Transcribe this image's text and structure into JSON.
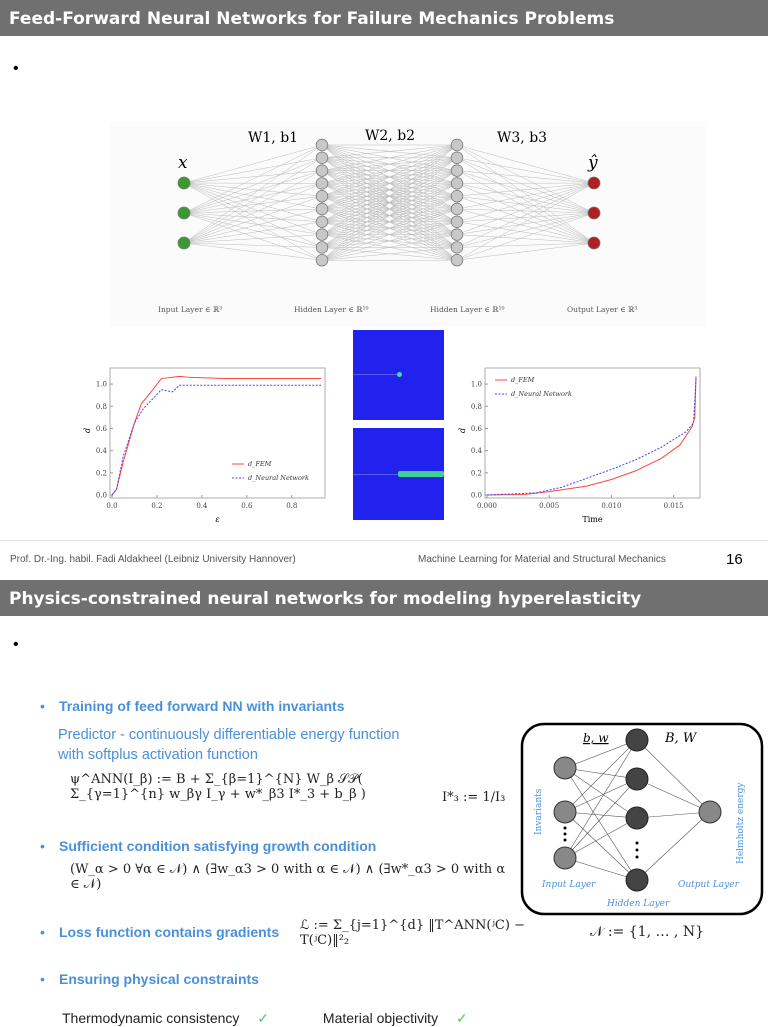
{
  "slide1": {
    "title": "Feed-Forward Neural Networks for Failure Mechanics Problems",
    "bullet": "•",
    "nn": {
      "weights": [
        "W1, b1",
        "W2, b2",
        "W3, b3"
      ],
      "input_symbol": "x",
      "output_symbol": "ŷ",
      "layer_labels": [
        "Input Layer ∈ ℝ³",
        "Hidden Layer ∈ ℝ¹⁰",
        "Hidden Layer ∈ ℝ¹⁰",
        "Output Layer ∈ ℝ³"
      ],
      "layer_sizes": [
        3,
        10,
        10,
        3
      ],
      "colors": {
        "input": "#3a9a30",
        "hidden": "#c8c8c8",
        "output": "#b02020"
      }
    },
    "footer": {
      "left": "Prof. Dr.-Ing. habil. Fadi Aldakheel (Leibniz University Hannover)",
      "center": "Machine Learning for Material and Structural Mechanics",
      "page": "16"
    }
  },
  "chart_data": [
    {
      "type": "line",
      "xlabel": "ε",
      "ylabel": "d",
      "xlim": [
        0,
        0.93
      ],
      "ylim": [
        0,
        1.1
      ],
      "xticks": [
        "0.0",
        "0.2",
        "0.4",
        "0.6",
        "0.8"
      ],
      "yticks": [
        "0.0",
        "0.2",
        "0.4",
        "0.6",
        "0.8",
        "1.0"
      ],
      "legend": "bottom-right",
      "series": [
        {
          "name": "d_FEM",
          "color": "#ff4444",
          "dash": false,
          "x": [
            0,
            0.02,
            0.05,
            0.1,
            0.13,
            0.17,
            0.22,
            0.3,
            0.35,
            0.5,
            0.93
          ],
          "y": [
            0,
            0.05,
            0.3,
            0.65,
            0.82,
            0.92,
            1.05,
            1.07,
            1.06,
            1.05,
            1.05
          ]
        },
        {
          "name": "d_Neural Network",
          "color": "#4444ff",
          "dash": true,
          "x": [
            0,
            0.02,
            0.05,
            0.1,
            0.14,
            0.22,
            0.27,
            0.3,
            0.93
          ],
          "y": [
            0,
            0.05,
            0.35,
            0.65,
            0.78,
            0.95,
            0.93,
            0.99,
            0.99
          ]
        }
      ]
    },
    {
      "type": "line",
      "xlabel": "Time",
      "ylabel": "d",
      "xlim": [
        0,
        0.0168
      ],
      "ylim": [
        0,
        1.1
      ],
      "xticks": [
        "0.000",
        "0.005",
        "0.010",
        "0.015"
      ],
      "yticks": [
        "0.0",
        "0.2",
        "0.4",
        "0.6",
        "0.8",
        "1.0"
      ],
      "legend": "top-left",
      "series": [
        {
          "name": "d_FEM",
          "color": "#ff4444",
          "dash": false,
          "x": [
            0,
            0.003,
            0.005,
            0.008,
            0.01,
            0.012,
            0.014,
            0.0155,
            0.0165,
            0.0167,
            0.0168
          ],
          "y": [
            0,
            0.005,
            0.03,
            0.08,
            0.14,
            0.22,
            0.33,
            0.45,
            0.62,
            0.7,
            1.07
          ]
        },
        {
          "name": "d_Neural Network",
          "color": "#4444ff",
          "dash": true,
          "x": [
            0,
            0.004,
            0.006,
            0.008,
            0.01,
            0.012,
            0.014,
            0.016,
            0.0166,
            0.0168
          ],
          "y": [
            0,
            0.02,
            0.07,
            0.15,
            0.23,
            0.32,
            0.43,
            0.57,
            0.65,
            1.05
          ]
        }
      ]
    }
  ],
  "slide2": {
    "title": "Physics-constrained neural networks for modeling hyperelasticity",
    "bullet": "•",
    "items": [
      {
        "label": "Training of feed forward NN with invariants"
      },
      {
        "label": "Sufficient condition satisfying growth condition"
      },
      {
        "label": "Loss function contains gradients"
      },
      {
        "label": "Ensuring physical constraints"
      }
    ],
    "predictor": [
      "Predictor - continuously differentiable energy function",
      "with softplus activation function"
    ],
    "eq_psi": "ψ^ANN(I_β) := B + Σ_{β=1}^{N} W_β 𝒮𝒫( Σ_{γ=1}^{n} w_βγ I_γ + w*_β3 I*_3 + b_β )",
    "eq_i3": "I*₃ := 1/I₃",
    "eq_growth": "(W_α > 0 ∀α ∈ 𝒩) ∧ (∃w_α3 > 0 with α ∈ 𝒩) ∧ (∃w*_α3 > 0 with α ∈ 𝒩)",
    "eq_loss": "ℒ := Σ_{j=1}^{d} ‖T^ANN(ʲC) − T(ʲC)‖²₂",
    "eq_set": "𝒩 := {1, … , N}",
    "constraints": [
      {
        "label": "Thermodynamic consistency",
        "mark": "✓"
      },
      {
        "label": "Material objectivity",
        "mark": "✓"
      }
    ],
    "diagram": {
      "bw": "b, w",
      "BW": "B, W",
      "invariants": "Invariants",
      "helmholtz": "Helmholtz energy",
      "input": "Input Layer",
      "hidden": "Hidden Layer",
      "output": "Output Layer"
    }
  }
}
